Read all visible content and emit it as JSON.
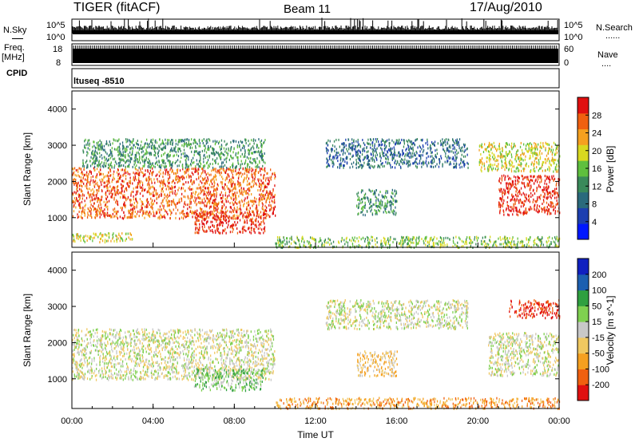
{
  "header": {
    "title": "TIGER (fitACF)",
    "beam": "Beam 11",
    "date": "17/Aug/2010"
  },
  "side_labels": {
    "nsky": "N.Sky",
    "freq": "Freq.",
    "freq_unit": "[MHz]",
    "cpid": "CPID",
    "nsearch": "N.Search",
    "nsearch_dots": "......",
    "nave": "Nave",
    "nave_dots": "....",
    "cpid_value": "ltuseq -8510"
  },
  "noise_panel": {
    "left_ticks": [
      "10^5",
      "10^0"
    ],
    "right_ticks": [
      "10^5",
      "10^0"
    ]
  },
  "freq_panel": {
    "left_ticks": [
      "18",
      "8"
    ],
    "right_ticks": [
      "60",
      "0"
    ]
  },
  "colors": {
    "power": [
      "#0018ff",
      "#1c3fb0",
      "#2a6a7c",
      "#3a8a5a",
      "#5fbf3e",
      "#d8d820",
      "#f5a020",
      "#f06010",
      "#e01010"
    ],
    "velocity": [
      "#e01010",
      "#f06010",
      "#f5a020",
      "#f0c860",
      "#c8c8c8",
      "#7fd050",
      "#2fa040",
      "#1c5fb0",
      "#1020c0"
    ]
  },
  "chart_data": [
    {
      "type": "heatmap",
      "panel": "power",
      "xlabel": "",
      "ylabel": "Slant Range [km]",
      "colorbar_label": "Power [dB]",
      "colorbar_ticks": [
        "28",
        "24",
        "20",
        "16",
        "12",
        "8",
        "4"
      ],
      "y_ticks": [
        "4000",
        "3000",
        "2000",
        "1000"
      ],
      "xlim": [
        0,
        24
      ],
      "ylim": [
        180,
        4500
      ],
      "regions": [
        {
          "x0": 0.0,
          "x1": 10.0,
          "y0": 1000,
          "y1": 2400,
          "level": 7
        },
        {
          "x0": 0.5,
          "x1": 9.5,
          "y0": 2400,
          "y1": 3200,
          "level": 3
        },
        {
          "x0": 6.0,
          "x1": 9.5,
          "y0": 600,
          "y1": 1200,
          "level": 8
        },
        {
          "x0": 0.0,
          "x1": 3.0,
          "y0": 350,
          "y1": 600,
          "level": 5
        },
        {
          "x0": 12.5,
          "x1": 19.5,
          "y0": 2400,
          "y1": 3200,
          "level": 2
        },
        {
          "x0": 14.0,
          "x1": 16.0,
          "y0": 1100,
          "y1": 1800,
          "level": 3
        },
        {
          "x0": 10.0,
          "x1": 24.0,
          "y0": 200,
          "y1": 500,
          "level": 4
        },
        {
          "x0": 21.0,
          "x1": 24.0,
          "y0": 1100,
          "y1": 2200,
          "level": 8
        },
        {
          "x0": 20.0,
          "x1": 24.0,
          "y0": 2300,
          "y1": 3100,
          "level": 5
        }
      ]
    },
    {
      "type": "heatmap",
      "panel": "velocity",
      "xlabel": "Time UT",
      "ylabel": "Slant Range [km]",
      "colorbar_label": "Velocity [m s^-1]",
      "colorbar_ticks": [
        "200",
        "100",
        "50",
        "15",
        "-15",
        "-50",
        "-100",
        "-200"
      ],
      "x_ticks": [
        "00:00",
        "04:00",
        "08:00",
        "12:00",
        "16:00",
        "20:00",
        "00:00"
      ],
      "y_ticks": [
        "4000",
        "3000",
        "2000",
        "1000"
      ],
      "xlim": [
        0,
        24
      ],
      "ylim": [
        180,
        4500
      ],
      "regions": [
        {
          "x0": 0.0,
          "x1": 10.0,
          "y0": 1000,
          "y1": 2400,
          "level": 4
        },
        {
          "x0": 6.0,
          "x1": 9.5,
          "y0": 700,
          "y1": 1300,
          "level": 5
        },
        {
          "x0": 12.5,
          "x1": 19.5,
          "y0": 2400,
          "y1": 3200,
          "level": 4
        },
        {
          "x0": 14.0,
          "x1": 16.0,
          "y0": 1100,
          "y1": 1800,
          "level": 3
        },
        {
          "x0": 10.0,
          "x1": 24.0,
          "y0": 200,
          "y1": 500,
          "level": 2
        },
        {
          "x0": 20.5,
          "x1": 24.0,
          "y0": 1100,
          "y1": 2300,
          "level": 4
        },
        {
          "x0": 21.5,
          "x1": 24.0,
          "y0": 2700,
          "y1": 3200,
          "level": 0
        }
      ]
    }
  ]
}
